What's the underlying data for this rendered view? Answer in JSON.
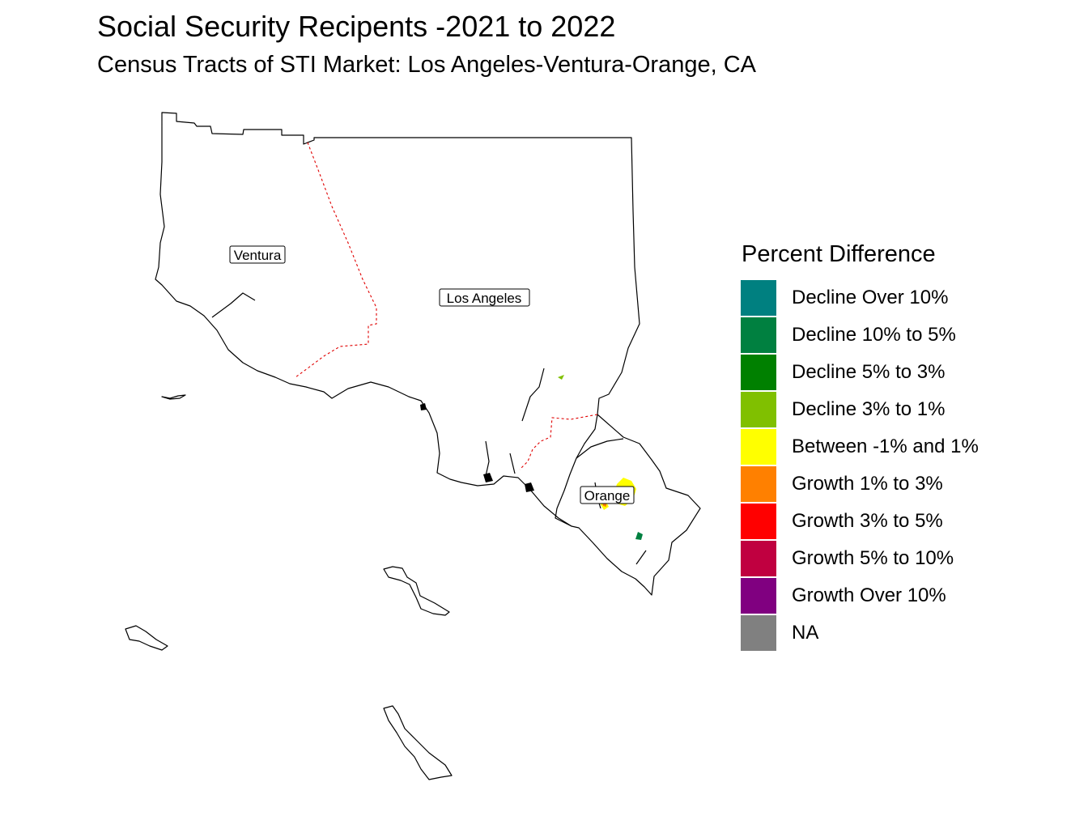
{
  "title": "Social Security Recipents -2021 to 2022",
  "subtitle": "Census Tracts of STI Market: Los Angeles-Ventura-Orange, CA",
  "map": {
    "counties": [
      {
        "name": "Ventura"
      },
      {
        "name": "Los Angeles"
      },
      {
        "name": "Orange"
      }
    ],
    "boundary_colors": {
      "county_outline": "#000000",
      "county_border": "#e00000"
    }
  },
  "legend": {
    "title": "Percent Difference",
    "items": [
      {
        "label": "Decline Over 10%",
        "color": "#008080"
      },
      {
        "label": "Decline 10% to 5%",
        "color": "#008040"
      },
      {
        "label": "Decline 5% to 3%",
        "color": "#008000"
      },
      {
        "label": "Decline 3% to 1%",
        "color": "#80c000"
      },
      {
        "label": "Between -1% and 1%",
        "color": "#ffff00"
      },
      {
        "label": "Growth 1% to 3%",
        "color": "#ff8000"
      },
      {
        "label": "Growth 3% to 5%",
        "color": "#ff0000"
      },
      {
        "label": "Growth 5% to 10%",
        "color": "#c00040"
      },
      {
        "label": "Growth Over 10%",
        "color": "#800080"
      },
      {
        "label": "NA",
        "color": "#808080"
      }
    ]
  }
}
